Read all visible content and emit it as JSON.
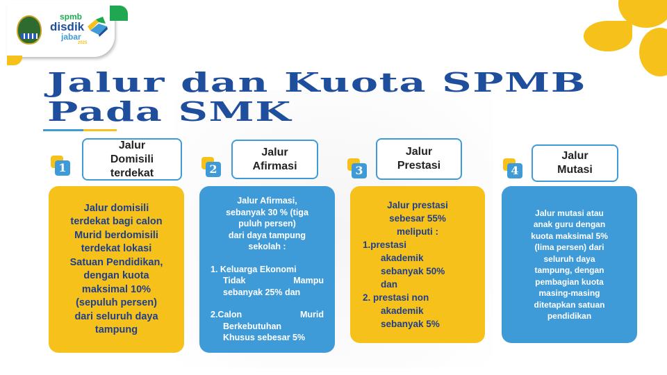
{
  "logo": {
    "line1": "spmb",
    "line2": "disdik",
    "line3": "jabar",
    "year": "2025"
  },
  "title": {
    "line1": "Jalur dan  Kuota SPMB",
    "line2": "Pada SMK"
  },
  "colors": {
    "yellow": "#f6c11b",
    "blue": "#3f9bd8",
    "title": "#1f4e9c",
    "green": "#1fa84f"
  },
  "jalur": [
    {
      "number": "1",
      "heading": [
        "Jalur",
        "Domisili",
        "terdekat"
      ],
      "lines": [
        "Jalur domisili",
        "terdekat bagi calon",
        "Murid berdomisili",
        "terdekat lokasi",
        "Satuan Pendidikan,",
        "dengan kuota",
        "maksimal 10%",
        "(sepuluh persen)",
        "dari seluruh daya",
        "tampung"
      ]
    },
    {
      "number": "2",
      "heading": [
        "Jalur",
        "Afirmasi"
      ],
      "lines": [
        "Jalur Afirmasi,",
        "sebanyak 30 % (tiga",
        "puluh persen)",
        "dari daya tampung",
        "sekolah :",
        "",
        "1.  Keluarga Ekonomi",
        "Tidak Mampu",
        "sebanyak 25% dan",
        "",
        "2.Calon Murid",
        "Berkebutuhan",
        "Khusus sebesar 5%"
      ]
    },
    {
      "number": "3",
      "heading": [
        "Jalur",
        "Prestasi"
      ],
      "lines": [
        "Jalur prestasi",
        "sebesar 55%",
        "meliputi :",
        "1.prestasi",
        "akademik",
        "sebanyak 50%",
        "dan",
        "2. prestasi non",
        "akademik",
        "sebanyak 5%"
      ]
    },
    {
      "number": "4",
      "heading": [
        "Jalur",
        "Mutasi"
      ],
      "lines": [
        "Jalur mutasi atau",
        "anak guru dengan",
        "kuota maksimal 5%",
        "(lima persen) dari",
        "seluruh daya",
        "tampung, dengan",
        "pembagian kuota",
        "masing-masing",
        "ditetapkan satuan",
        "pendidikan"
      ]
    }
  ]
}
